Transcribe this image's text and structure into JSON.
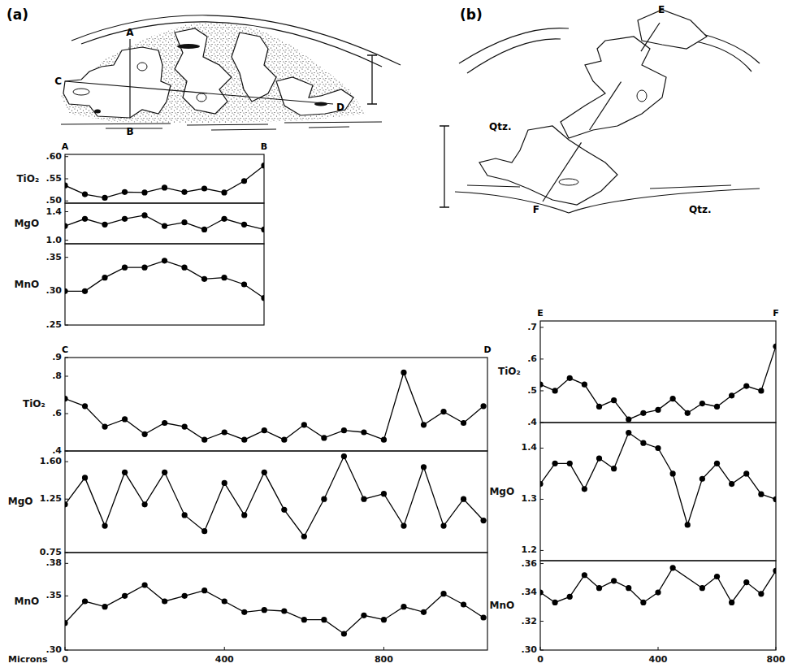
{
  "figure": {
    "panels": [
      {
        "label": "(a)",
        "sketch_labels": [
          "A",
          "B",
          "C",
          "D"
        ]
      },
      {
        "label": "(b)",
        "sketch_labels": [
          "E",
          "F"
        ],
        "mineral_labels": [
          "Qtz.",
          "Qtz."
        ]
      }
    ]
  },
  "chart_data": [
    {
      "type": "line",
      "y_label": "TiO₂",
      "start_label": "A",
      "end_label": "B",
      "x": [
        0,
        48,
        96,
        144,
        192,
        240,
        288,
        336,
        384,
        432,
        480
      ],
      "values": [
        0.535,
        0.515,
        0.507,
        0.52,
        0.519,
        0.53,
        0.52,
        0.528,
        0.519,
        0.545,
        0.58
      ],
      "xlim": [
        0,
        480
      ],
      "ylim": [
        0.495,
        0.605
      ],
      "yticks": [
        {
          "value": 0.6,
          "label": ".60"
        },
        {
          "value": 0.55,
          "label": ".55"
        },
        {
          "value": 0.5,
          "label": ".50"
        }
      ],
      "color": "#000000",
      "marker": "circle",
      "grid": false,
      "tick_labels": "y"
    },
    {
      "type": "line",
      "y_label": "MgO",
      "x": [
        0,
        48,
        96,
        144,
        192,
        240,
        288,
        336,
        384,
        432,
        480
      ],
      "values": [
        1.2,
        1.3,
        1.22,
        1.3,
        1.35,
        1.2,
        1.25,
        1.15,
        1.3,
        1.22,
        1.15
      ],
      "xlim": [
        0,
        480
      ],
      "ylim": [
        0.95,
        1.52
      ],
      "yticks": [
        1.4,
        {
          "value": 1.0,
          "label": "1.0"
        }
      ],
      "color": "#000000",
      "marker": "circle",
      "grid": false,
      "tick_labels": "y"
    },
    {
      "type": "line",
      "y_label": "MnO",
      "x": [
        0,
        48,
        96,
        144,
        192,
        240,
        288,
        336,
        384,
        432,
        480
      ],
      "values": [
        0.3,
        0.3,
        0.32,
        0.335,
        0.335,
        0.345,
        0.335,
        0.318,
        0.32,
        0.31,
        0.29
      ],
      "xlim": [
        0,
        480
      ],
      "ylim": [
        0.25,
        0.37
      ],
      "yticks": [
        {
          "value": 0.35,
          "label": ".35"
        },
        {
          "value": 0.3,
          "label": ".30"
        },
        {
          "value": 0.25,
          "label": ".25"
        }
      ],
      "color": "#000000",
      "marker": "circle",
      "grid": false,
      "tick_labels": "y"
    },
    {
      "type": "line",
      "y_label": "TiO₂",
      "start_label": "C",
      "end_label": "D",
      "x": [
        0,
        50,
        100,
        150,
        200,
        250,
        300,
        350,
        400,
        450,
        500,
        550,
        600,
        650,
        700,
        750,
        800,
        850,
        900,
        950,
        1000,
        1050
      ],
      "values": [
        0.68,
        0.64,
        0.53,
        0.57,
        0.49,
        0.55,
        0.53,
        0.46,
        0.5,
        0.46,
        0.51,
        0.46,
        0.54,
        0.47,
        0.51,
        0.5,
        0.46,
        0.82,
        0.54,
        0.61,
        0.55,
        0.64
      ],
      "xlim": [
        0,
        1060
      ],
      "ylim": [
        0.4,
        0.9
      ],
      "yticks": [
        {
          "value": 0.9,
          "label": ".9"
        },
        {
          "value": 0.8,
          "label": ".8"
        },
        {
          "value": 0.6,
          "label": ".6"
        },
        {
          "value": 0.4,
          "label": ".4"
        }
      ],
      "color": "#000000",
      "marker": "circle",
      "grid": false,
      "tick_labels": "y"
    },
    {
      "type": "line",
      "y_label": "MgO",
      "x": [
        0,
        50,
        100,
        150,
        200,
        250,
        300,
        350,
        400,
        450,
        500,
        550,
        600,
        650,
        700,
        750,
        800,
        850,
        900,
        950,
        1000,
        1050
      ],
      "values": [
        1.2,
        1.45,
        1.0,
        1.5,
        1.2,
        1.5,
        1.1,
        0.95,
        1.4,
        1.1,
        1.5,
        1.15,
        0.9,
        1.25,
        1.65,
        1.25,
        1.3,
        1.0,
        1.55,
        1.0,
        1.25,
        1.05
      ],
      "xlim": [
        0,
        1060
      ],
      "ylim": [
        0.75,
        1.7
      ],
      "yticks": [
        {
          "value": 1.6,
          "label": "1.60"
        },
        1.25,
        0.75
      ],
      "color": "#000000",
      "marker": "circle",
      "grid": false,
      "tick_labels": "y"
    },
    {
      "type": "line",
      "y_label": "MnO",
      "x_label": "Microns",
      "x": [
        0,
        50,
        100,
        150,
        200,
        250,
        300,
        350,
        400,
        450,
        500,
        550,
        600,
        650,
        700,
        750,
        800,
        850,
        900,
        950,
        1000,
        1050
      ],
      "values": [
        0.325,
        0.345,
        0.34,
        0.35,
        0.36,
        0.345,
        0.35,
        0.355,
        0.345,
        0.335,
        0.337,
        0.336,
        0.328,
        0.328,
        0.315,
        0.332,
        0.328,
        0.34,
        0.335,
        0.352,
        0.342,
        0.33
      ],
      "xlim": [
        0,
        1060
      ],
      "ylim": [
        0.3,
        0.39
      ],
      "yticks": [
        {
          "value": 0.38,
          "label": ".38"
        },
        {
          "value": 0.35,
          "label": ".35"
        },
        {
          "value": 0.3,
          "label": ".30"
        }
      ],
      "xticks": [
        0,
        400,
        800
      ],
      "color": "#000000",
      "marker": "circle",
      "grid": false
    },
    {
      "type": "line",
      "y_label": "TiO₂",
      "start_label": "E",
      "end_label": "F",
      "x": [
        0,
        50,
        100,
        150,
        200,
        250,
        300,
        350,
        400,
        450,
        500,
        550,
        600,
        650,
        700,
        750,
        800
      ],
      "values": [
        0.52,
        0.5,
        0.54,
        0.52,
        0.45,
        0.47,
        0.41,
        0.43,
        0.44,
        0.475,
        0.43,
        0.46,
        0.45,
        0.485,
        0.515,
        0.5,
        0.64
      ],
      "xlim": [
        0,
        800
      ],
      "ylim": [
        0.4,
        0.72
      ],
      "yticks": [
        {
          "value": 0.7,
          "label": ".7"
        },
        {
          "value": 0.6,
          "label": ".6"
        },
        {
          "value": 0.5,
          "label": ".5"
        },
        {
          "value": 0.4,
          "label": ".4"
        }
      ],
      "color": "#000000",
      "marker": "circle",
      "grid": false,
      "tick_labels": "y"
    },
    {
      "type": "line",
      "y_label": "MgO",
      "x": [
        0,
        50,
        100,
        150,
        200,
        250,
        300,
        350,
        400,
        450,
        500,
        550,
        600,
        650,
        700,
        750,
        800
      ],
      "values": [
        1.33,
        1.37,
        1.37,
        1.32,
        1.38,
        1.36,
        1.43,
        1.41,
        1.4,
        1.35,
        1.25,
        1.34,
        1.37,
        1.33,
        1.35,
        1.31,
        1.3
      ],
      "xlim": [
        0,
        800
      ],
      "ylim": [
        1.18,
        1.45
      ],
      "yticks": [
        1.4,
        1.3,
        1.2
      ],
      "color": "#000000",
      "marker": "circle",
      "grid": false,
      "tick_labels": "y"
    },
    {
      "type": "line",
      "y_label": "MnO",
      "x": [
        0,
        50,
        100,
        150,
        200,
        250,
        300,
        350,
        400,
        450,
        550,
        600,
        650,
        700,
        750,
        800
      ],
      "values": [
        0.34,
        0.333,
        0.337,
        0.352,
        0.343,
        0.348,
        0.343,
        0.333,
        0.34,
        0.357,
        0.343,
        0.351,
        0.333,
        0.347,
        0.339,
        0.355
      ],
      "xlim": [
        0,
        800
      ],
      "ylim": [
        0.3,
        0.362
      ],
      "yticks": [
        {
          "value": 0.36,
          "label": ".36"
        },
        {
          "value": 0.34,
          "label": ".34"
        },
        {
          "value": 0.32,
          "label": ".32"
        },
        {
          "value": 0.3,
          "label": ".30"
        }
      ],
      "xticks": [
        0,
        400,
        800
      ],
      "color": "#000000",
      "marker": "circle",
      "grid": false
    }
  ]
}
